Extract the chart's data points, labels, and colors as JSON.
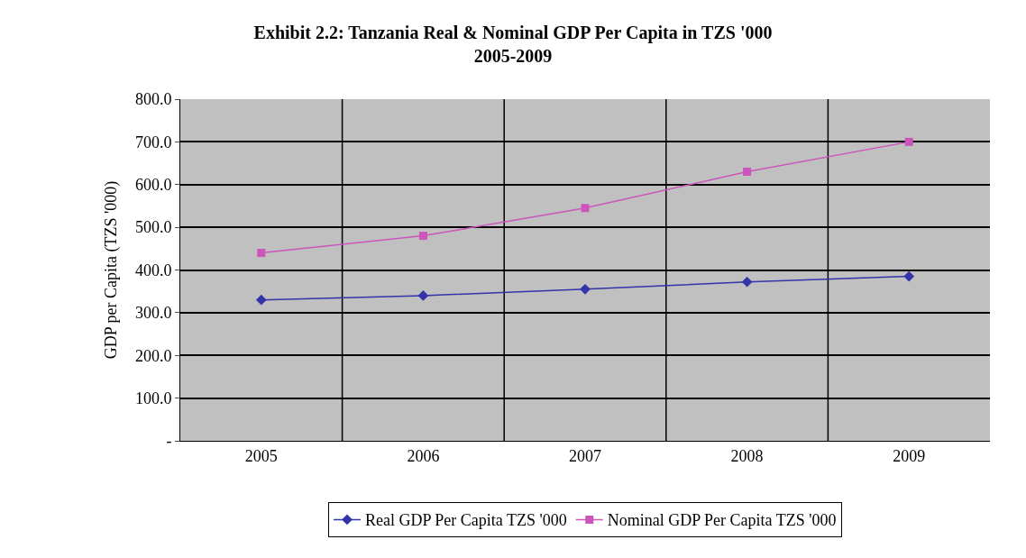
{
  "chart_data": {
    "type": "line",
    "title": "Exhibit 2.2: Tanzania Real & Nominal GDP Per Capita in TZS '000",
    "subtitle": "2005-2009",
    "ylabel": "GDP per Capita (TZS '000)",
    "categories": [
      "2005",
      "2006",
      "2007",
      "2008",
      "2009"
    ],
    "series": [
      {
        "name": "Real GDP Per Capita TZS '000",
        "color": "#3333aa",
        "marker": "diamond",
        "values": [
          330,
          340,
          355,
          372,
          385
        ]
      },
      {
        "name": "Nominal GDP Per Capita TZS '000",
        "color": "#cc55bb",
        "marker": "square",
        "values": [
          440,
          480,
          545,
          630,
          700
        ]
      }
    ],
    "ylim": [
      0,
      800
    ],
    "yticks": [
      {
        "value": 0,
        "label": "-"
      },
      {
        "value": 100,
        "label": "100.0"
      },
      {
        "value": 200,
        "label": "200.0"
      },
      {
        "value": 300,
        "label": "300.0"
      },
      {
        "value": 400,
        "label": "400.0"
      },
      {
        "value": 500,
        "label": "500.0"
      },
      {
        "value": 600,
        "label": "600.0"
      },
      {
        "value": 700,
        "label": "700.0"
      },
      {
        "value": 800,
        "label": "800.0"
      }
    ],
    "grid": true,
    "legend": "bottom",
    "line_style": "solid"
  }
}
